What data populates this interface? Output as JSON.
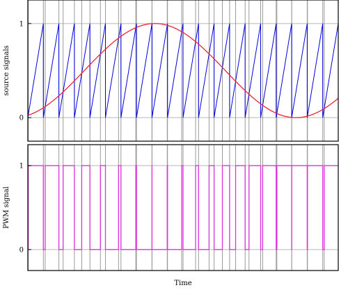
{
  "chart_data": [
    {
      "type": "line",
      "ylabel": "source signals",
      "ylim": [
        -0.25,
        1.25
      ],
      "xlim": [
        0,
        1
      ],
      "yticks": [
        0,
        1
      ],
      "ytick_labels": [
        "0",
        "1"
      ],
      "grid": true,
      "legend": "none",
      "series": [
        {
          "kind": "sawtooth",
          "color": "#0000dd",
          "period": 0.05,
          "min": 0,
          "max": 1,
          "x_start": 0
        },
        {
          "kind": "sine",
          "color": "#ee2233",
          "offset": 0.5,
          "amplitude": 0.5,
          "frequency": 1.1,
          "phase": -0.2
        }
      ]
    },
    {
      "type": "line",
      "xlabel": "Time",
      "ylabel": "PWM signal",
      "ylim": [
        -0.25,
        1.25
      ],
      "xlim": [
        0,
        1
      ],
      "yticks": [
        0,
        1
      ],
      "ytick_labels": [
        "0",
        "1"
      ],
      "grid": true,
      "legend": "none",
      "series": [
        {
          "kind": "pwm",
          "color": "#dd33dd",
          "definition": "1 while sawtooth exceeds sine, else 0"
        }
      ]
    }
  ]
}
